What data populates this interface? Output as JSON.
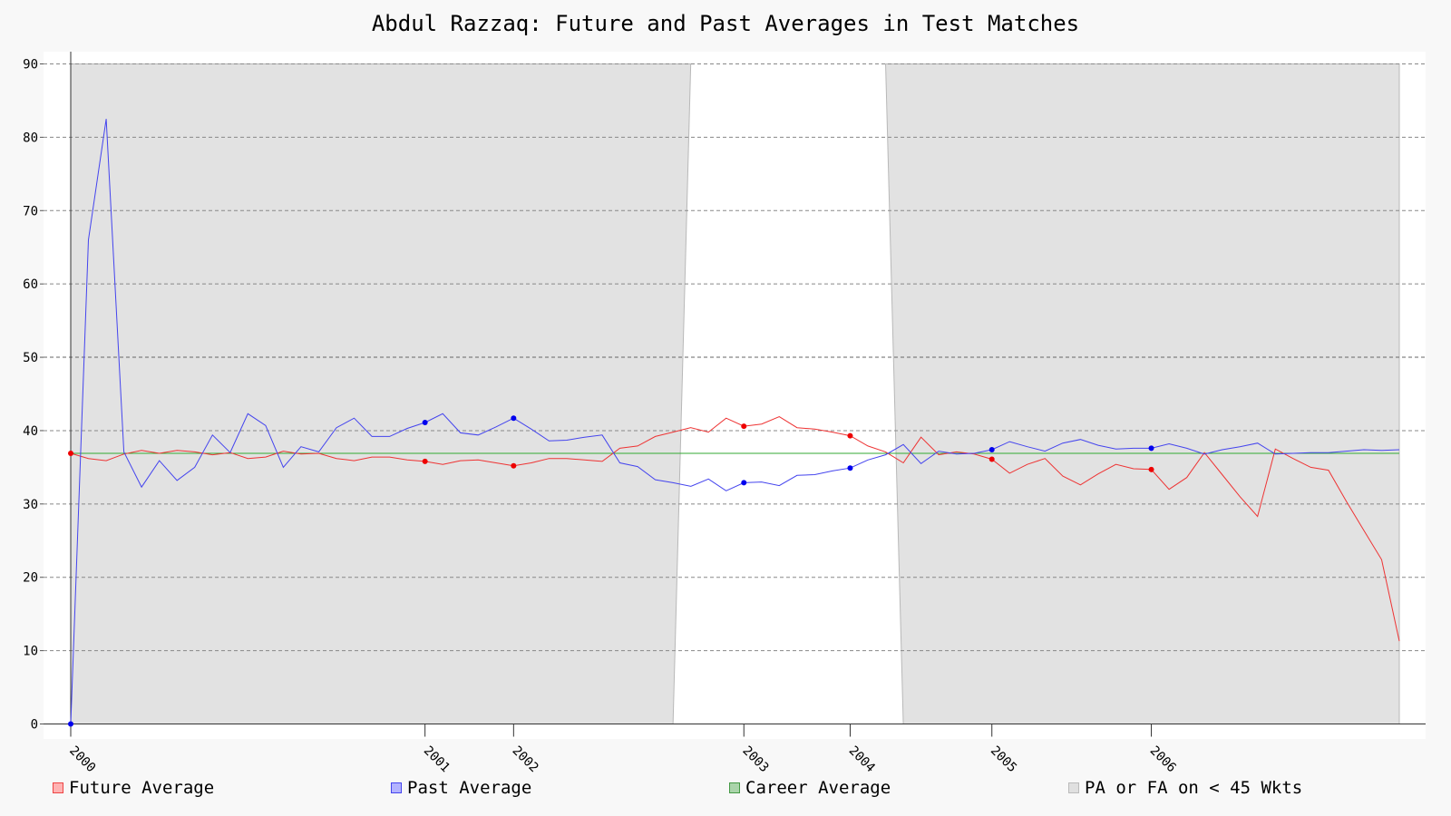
{
  "chart_data": {
    "type": "line",
    "title": "Abdul Razzaq: Future and Past Averages in Test Matches",
    "xlabel": "",
    "ylabel": "",
    "ylim": [
      0,
      90
    ],
    "yticks": [
      0,
      10,
      20,
      30,
      40,
      50,
      60,
      70,
      80,
      90
    ],
    "x_tick_labels": [
      {
        "label": "2000",
        "match": 0
      },
      {
        "label": "2001",
        "match": 20
      },
      {
        "label": "2002",
        "match": 25
      },
      {
        "label": "2003",
        "match": 38
      },
      {
        "label": "2004",
        "match": 44
      },
      {
        "label": "2005",
        "match": 52
      },
      {
        "label": "2006",
        "match": 61
      }
    ],
    "x_range": [
      0,
      75
    ],
    "grid": true,
    "legend_placement": "bottom",
    "career_average": 36.9,
    "shaded_regions": [
      {
        "name": "PA or FA on < 45 Wkts",
        "from": 0,
        "to": 34
      },
      {
        "name": "PA or FA on < 45 Wkts",
        "from": 47,
        "to": 75
      }
    ],
    "series": [
      {
        "name": "Future Average",
        "color": "#ee3333",
        "values": [
          36.9,
          36.2,
          35.9,
          36.8,
          37.3,
          36.9,
          37.3,
          37.1,
          36.7,
          37.0,
          36.2,
          36.4,
          37.2,
          36.8,
          36.9,
          36.2,
          35.9,
          36.4,
          36.4,
          36.0,
          35.8,
          35.4,
          35.9,
          36.0,
          35.6,
          35.2,
          35.6,
          36.2,
          36.2,
          36.0,
          35.8,
          37.6,
          37.9,
          39.2,
          39.8,
          40.4,
          39.8,
          41.7,
          40.6,
          40.9,
          41.9,
          40.4,
          40.2,
          39.8,
          39.3,
          37.9,
          37.1,
          35.6,
          39.1,
          36.7,
          37.1,
          36.8,
          36.1,
          34.2,
          35.4,
          36.2,
          33.8,
          32.6,
          34.1,
          35.4,
          34.8,
          34.7,
          32.0,
          33.6,
          37.0,
          34.0,
          31.0,
          28.3,
          37.5,
          36.2,
          35.0,
          34.6,
          30.4,
          26.4,
          22.4,
          11.3
        ],
        "markers": [
          0,
          20,
          25,
          38,
          44,
          52,
          61
        ]
      },
      {
        "name": "Past Average",
        "color": "#4444ee",
        "values": [
          0.0,
          66.0,
          82.5,
          37.1,
          32.3,
          35.9,
          33.2,
          35.0,
          39.4,
          37.0,
          42.3,
          40.7,
          35.0,
          37.8,
          37.1,
          40.4,
          41.7,
          39.2,
          39.2,
          40.3,
          41.1,
          42.3,
          39.7,
          39.4,
          40.5,
          41.7,
          40.2,
          38.6,
          38.7,
          39.1,
          39.4,
          35.6,
          35.1,
          33.3,
          32.9,
          32.4,
          33.4,
          31.8,
          32.9,
          33.0,
          32.5,
          33.9,
          34.0,
          34.5,
          34.9,
          36.0,
          36.7,
          38.1,
          35.5,
          37.2,
          36.8,
          36.9,
          37.4,
          38.5,
          37.8,
          37.2,
          38.3,
          38.8,
          38.0,
          37.5,
          37.6,
          37.6,
          38.2,
          37.6,
          36.8,
          37.4,
          37.8,
          38.3,
          36.8,
          36.9,
          37.0,
          37.0,
          37.2,
          37.4,
          37.3,
          37.4
        ],
        "markers": [
          0,
          20,
          25,
          38,
          44,
          52,
          61
        ]
      },
      {
        "name": "Career Average",
        "color": "#33aa33",
        "values": [
          36.9,
          36.9
        ]
      }
    ]
  },
  "legend": {
    "items": [
      {
        "label": "Future Average",
        "fill": "#ffb3b3",
        "stroke": "#ee4444"
      },
      {
        "label": "Past Average",
        "fill": "#b3b3ff",
        "stroke": "#4444ee"
      },
      {
        "label": "Career Average",
        "fill": "#aad4aa",
        "stroke": "#449944"
      },
      {
        "label": "PA or FA on < 45 Wkts",
        "fill": "#e0e0e0",
        "stroke": "#bbbbbb"
      }
    ]
  }
}
